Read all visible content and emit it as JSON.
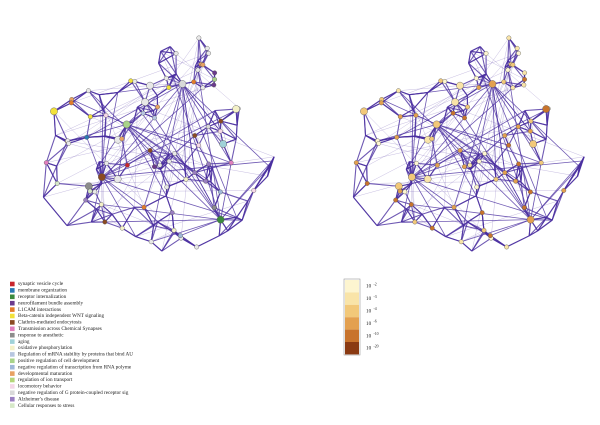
{
  "legend": [
    {
      "label": "synaptic vesicle cycle",
      "color": "#c8252c"
    },
    {
      "label": "membrane organization",
      "color": "#2a7ab5"
    },
    {
      "label": "receptor internalization",
      "color": "#3b8a3e"
    },
    {
      "label": "neurofilament bundle assembly",
      "color": "#6b3a8c"
    },
    {
      "label": "L1CAM interactions",
      "color": "#e47b2a"
    },
    {
      "label": "Beta-catenin independent WNT signaling",
      "color": "#f2e13a"
    },
    {
      "label": "Clathrin-mediated endocytosis",
      "color": "#8b4a22"
    },
    {
      "label": "Transmission across Chemical Synapses",
      "color": "#e07fbe"
    },
    {
      "label": "response to anesthetic",
      "color": "#8c8c8c"
    },
    {
      "label": "aging",
      "color": "#a0d2d8"
    },
    {
      "label": "oxidative phosphorylation",
      "color": "#f4f1c8"
    },
    {
      "label": "Regulation of mRNA stability by proteins that bind AU",
      "color": "#b7c6e0"
    },
    {
      "label": "positive regulation of cell development",
      "color": "#a8d38a"
    },
    {
      "label": "negative regulation of transcription from RNA polyme",
      "color": "#9fb7d9"
    },
    {
      "label": "developmental maturation",
      "color": "#e8a263"
    },
    {
      "label": "regulation of ion transport",
      "color": "#b5d67a"
    },
    {
      "label": "locomotory behavior",
      "color": "#f5d7e8"
    },
    {
      "label": "negative regulation of G protein-coupled receptor sig",
      "color": "#d9d9d9"
    },
    {
      "label": "Alzheimer's disease",
      "color": "#9a7fc1"
    },
    {
      "label": "Cellular responses to stress",
      "color": "#d6e8c8"
    }
  ],
  "scale": [
    {
      "base": "10",
      "exponent": "-2",
      "color": "#fdf5d0"
    },
    {
      "base": "10",
      "exponent": "-3",
      "color": "#f9e4a8"
    },
    {
      "base": "10",
      "exponent": "-4",
      "color": "#f2c879"
    },
    {
      "base": "10",
      "exponent": "-6",
      "color": "#e3a04f"
    },
    {
      "base": "10",
      "exponent": "-10",
      "color": "#c8732c"
    },
    {
      "base": "10",
      "exponent": "-20",
      "color": "#8a3a12"
    }
  ]
}
